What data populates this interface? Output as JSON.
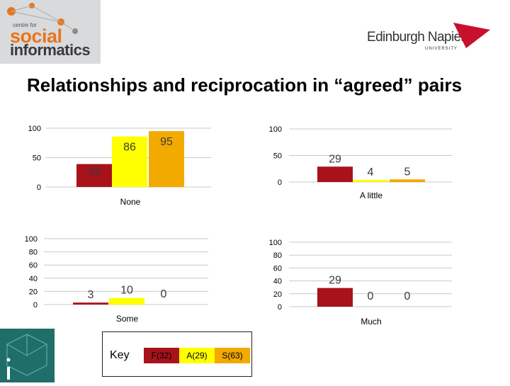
{
  "header": {
    "logo_small": "centre for",
    "logo_line1": "social",
    "logo_line2": "informatics",
    "university_name": "Edinburgh Napier",
    "university_sub": "UNIVERSITY"
  },
  "slide": {
    "title": "Relationships and reciprocation in “agreed” pairs"
  },
  "colors": {
    "F": "#a8121a",
    "A": "#ffff00",
    "S": "#f2a900",
    "logo_orange": "#e8751a",
    "teal": "#1f6e6a"
  },
  "key": {
    "label": "Key",
    "items": [
      {
        "text": "F(32)",
        "color": "#a8121a"
      },
      {
        "text": "A(29)",
        "color": "#ffff00"
      },
      {
        "text": "S(63)",
        "color": "#f2a900"
      }
    ]
  },
  "chart_data": [
    {
      "type": "bar",
      "categories": [
        "None"
      ],
      "series": [
        {
          "name": "F(32)",
          "values": [
            39
          ]
        },
        {
          "name": "A(29)",
          "values": [
            86
          ]
        },
        {
          "name": "S(63)",
          "values": [
            95
          ]
        }
      ],
      "yticks": [
        0,
        50,
        100
      ],
      "ylim": [
        0,
        100
      ],
      "grid": true
    },
    {
      "type": "bar",
      "categories": [
        "A little"
      ],
      "series": [
        {
          "name": "F(32)",
          "values": [
            29
          ]
        },
        {
          "name": "A(29)",
          "values": [
            4
          ]
        },
        {
          "name": "S(63)",
          "values": [
            5
          ]
        }
      ],
      "yticks": [
        0,
        50,
        100
      ],
      "ylim": [
        0,
        100
      ],
      "grid": true
    },
    {
      "type": "bar",
      "categories": [
        "Some"
      ],
      "series": [
        {
          "name": "F(32)",
          "values": [
            3
          ]
        },
        {
          "name": "A(29)",
          "values": [
            10
          ]
        },
        {
          "name": "S(63)",
          "values": [
            0
          ]
        }
      ],
      "yticks": [
        0,
        20,
        40,
        60,
        80,
        100
      ],
      "ylim": [
        0,
        100
      ],
      "grid": true
    },
    {
      "type": "bar",
      "categories": [
        "Much"
      ],
      "series": [
        {
          "name": "F(32)",
          "values": [
            29
          ]
        },
        {
          "name": "A(29)",
          "values": [
            0
          ]
        },
        {
          "name": "S(63)",
          "values": [
            0
          ]
        }
      ],
      "yticks": [
        0,
        20,
        40,
        60,
        80,
        100
      ],
      "ylim": [
        0,
        100
      ],
      "grid": true
    }
  ]
}
